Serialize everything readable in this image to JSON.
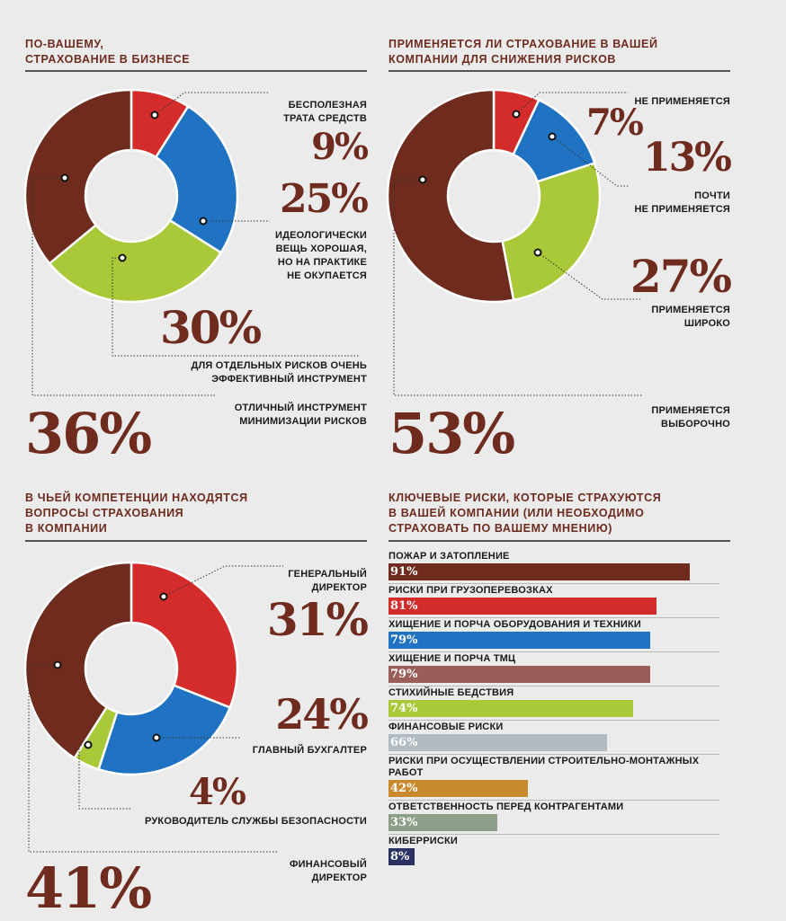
{
  "chart_data": [
    {
      "type": "pie",
      "title": "По-вашему, страхование в бизнесе",
      "slices": [
        {
          "label": "Бесполезная трата средств",
          "value": 9,
          "display": "9%",
          "color": "#d42b2b"
        },
        {
          "label": "Идеологически вещь хорошая, но на практике не окупается",
          "value": 25,
          "display": "25%",
          "color": "#1f73c2"
        },
        {
          "label": "Для отдельных рисков очень эффективный инструмент",
          "value": 30,
          "display": "30%",
          "color": "#a9c938"
        },
        {
          "label": "Отличный инструмент минимизации рисков",
          "value": 36,
          "display": "36%",
          "color": "#6e2b1e"
        }
      ]
    },
    {
      "type": "pie",
      "title": "Применяется ли страхование в вашей компании для снижения рисков",
      "slices": [
        {
          "label": "Не применяется",
          "value": 7,
          "display": "7%",
          "color": "#d42b2b"
        },
        {
          "label": "Почти не применяется",
          "value": 13,
          "display": "13%",
          "color": "#1f73c2"
        },
        {
          "label": "Применяется широко",
          "value": 27,
          "display": "27%",
          "color": "#a9c938"
        },
        {
          "label": "Применяется выборочно",
          "value": 53,
          "display": "53%",
          "color": "#6e2b1e"
        }
      ]
    },
    {
      "type": "pie",
      "title": "В чьей компетенции находятся вопросы страхования в компании",
      "slices": [
        {
          "label": "Генеральный директор",
          "value": 31,
          "display": "31%",
          "color": "#d42b2b"
        },
        {
          "label": "Главный бухгалтер",
          "value": 24,
          "display": "24%",
          "color": "#1f73c2"
        },
        {
          "label": "Руководитель службы безопасности",
          "value": 4,
          "display": "4%",
          "color": "#a9c938"
        },
        {
          "label": "Финансовый директор",
          "value": 41,
          "display": "41%",
          "color": "#6e2b1e"
        }
      ]
    },
    {
      "type": "bar",
      "title": "Ключевые риски, которые страхуются в вашей компании (или необходимо страховать по вашему мнению)",
      "xlim": [
        0,
        100
      ],
      "bars": [
        {
          "label": "Пожар и затопление",
          "value": 91,
          "display": "91%",
          "color": "#6e2b1e"
        },
        {
          "label": "Риски при грузоперевозках",
          "value": 81,
          "display": "81%",
          "color": "#d42b2b"
        },
        {
          "label": "Хищение и порча оборудования и техники",
          "value": 79,
          "display": "79%",
          "color": "#1f73c2"
        },
        {
          "label": "Хищение и порча ТМЦ",
          "value": 79,
          "display": "79%",
          "color": "#9a5e5a"
        },
        {
          "label": "Стихийные бедствия",
          "value": 74,
          "display": "74%",
          "color": "#a9c938"
        },
        {
          "label": "Финансовые риски",
          "value": 66,
          "display": "66%",
          "color": "#b1b9c1"
        },
        {
          "label": "Риски при осуществлении строительно-монтажных работ",
          "value": 42,
          "display": "42%",
          "color": "#c9892f"
        },
        {
          "label": "Ответственность перед контрагентами",
          "value": 33,
          "display": "33%",
          "color": "#8f9e88"
        },
        {
          "label": "Киберриски",
          "value": 8,
          "display": "8%",
          "color": "#2a3262"
        }
      ]
    }
  ],
  "q1": {
    "title_line1": "По-вашему,",
    "title_line2": "страхование в бизнесе",
    "l1a": "Бесполезная",
    "l1b": "трата средств",
    "l2a": "Идеологически",
    "l2b": "вещь хорошая,",
    "l2c": "но на практике",
    "l2d": "не окупается",
    "l3a": "Для отдельных рисков очень",
    "l3b": "эффективный инструмент",
    "l4a": "Отличный инструмент",
    "l4b": "минимизации рисков"
  },
  "q2": {
    "title_line1": "Применяется ли страхование в вашей",
    "title_line2": "компании для снижения рисков",
    "l1": "Не применяется",
    "l2a": "Почти",
    "l2b": "не применяется",
    "l3a": "Применяется",
    "l3b": "широко",
    "l4a": "Применяется",
    "l4b": "выборочно"
  },
  "q3": {
    "title_line1": "В чьей компетенции находятся",
    "title_line2": "вопросы страхования",
    "title_line3": "в компании",
    "l1a": "Генеральный",
    "l1b": "директор",
    "l2": "Главный бухгалтер",
    "l3": "Руководитель службы безопасности",
    "l4a": "Финансовый",
    "l4b": "директор"
  },
  "q4": {
    "title_line1": "Ключевые риски, которые страхуются",
    "title_line2": "в вашей компании (или необходимо",
    "title_line3": "страховать по вашему мнению)",
    "bar7_line1": "Риски при осуществлении строительно-монтажных",
    "bar7_line2": "работ"
  }
}
